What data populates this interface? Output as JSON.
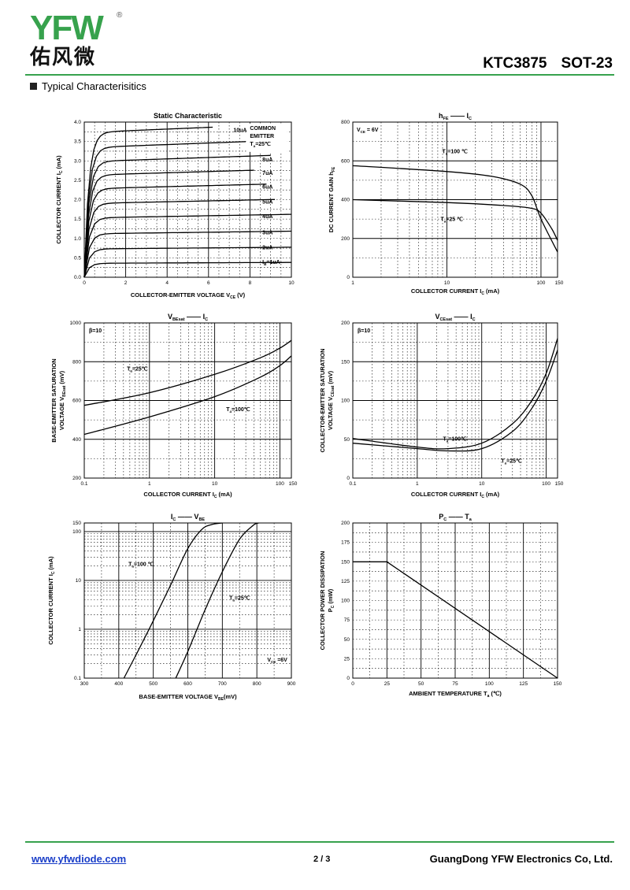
{
  "header": {
    "logo_text": "YFW",
    "logo_cn": "佑风微",
    "part_number": "KTC3875",
    "package": "SOT-23",
    "section_title": "Typical  Characterisitics"
  },
  "colors": {
    "brand_green": "#37a24d",
    "brand_orange": "#f39c1a",
    "link_blue": "#1a3ec8"
  },
  "charts": [
    {
      "type": "line",
      "title": "Static Characteristic",
      "xlabel": "COLLECTOR-EMITTER VOLTAGE",
      "xlabel_sym": "V",
      "xlabel_sub": "CE",
      "xlabel_unit": "(V)",
      "ylabel": "COLLECTOR CURRENT",
      "ylabel_sym": "I",
      "ylabel_sub": "C",
      "ylabel_unit": "(mA)",
      "xticks": [
        "0",
        "2",
        "4",
        "6",
        "8",
        "10"
      ],
      "yticks": [
        "0.0",
        "0.5",
        "1.0",
        "1.5",
        "2.0",
        "2.5",
        "3.0",
        "3.5",
        "4.0"
      ],
      "note": [
        "COMMON",
        "EMITTER",
        "T =25℃"
      ],
      "series_labels": [
        "10uA",
        "9uA",
        "8uA",
        "7uA",
        "6uA",
        "5uA",
        "4uA",
        "3uA",
        "2uA",
        "I =1uA"
      ],
      "series_plateaus": [
        3.73,
        3.34,
        2.98,
        2.63,
        2.28,
        1.9,
        1.53,
        1.12,
        0.73,
        0.36
      ]
    },
    {
      "type": "line",
      "title_sym": "h",
      "title_sub": "FE",
      "title_sym2": "I",
      "title_sub2": "C",
      "xlabel": "COLLECTOR CURRENT",
      "xlabel_sym": "I",
      "xlabel_sub": "C",
      "xlabel_unit": "(mA)",
      "ylabel": "DC CURRENT GAIN",
      "ylabel_sym": "h",
      "ylabel_sub": "FE",
      "xticks": [
        "1",
        "10",
        "100",
        "150"
      ],
      "yticks": [
        "0",
        "200",
        "400",
        "600",
        "800"
      ],
      "note": "V  = 6V",
      "series": [
        {
          "name": "T =100 ℃",
          "x": [
            1,
            10,
            30,
            60,
            80,
            100,
            150
          ],
          "y": [
            575,
            545,
            520,
            480,
            420,
            300,
            130
          ]
        },
        {
          "name": "T =25 ℃",
          "x": [
            1,
            10,
            40,
            80,
            100,
            130,
            150
          ],
          "y": [
            400,
            385,
            370,
            355,
            330,
            250,
            190
          ]
        }
      ]
    },
    {
      "type": "line",
      "title_sym": "V",
      "title_sub": "BEsat",
      "title_sym2": "I",
      "title_sub2": "C",
      "xlabel": "COLLECTOR CURRENT",
      "xlabel_sym": "I",
      "xlabel_sub": "C",
      "xlabel_unit": "(mA)",
      "ylabel": "BASE-EMITTER SATURATION",
      "ylabel2": "VOLTAGE",
      "ylabel_sym": "V",
      "ylabel_sub": "BEsat",
      "ylabel_unit": "(mV)",
      "xticks": [
        "0.1",
        "1",
        "10",
        "100",
        "150"
      ],
      "yticks": [
        "200",
        "400",
        "600",
        "800",
        "1000"
      ],
      "note": "β=10",
      "series": [
        {
          "name": "T =25℃",
          "x": [
            0.1,
            1,
            10,
            50,
            100,
            150
          ],
          "y": [
            575,
            640,
            735,
            820,
            870,
            910
          ]
        },
        {
          "name": "T =100℃",
          "x": [
            0.1,
            1,
            10,
            50,
            100,
            150
          ],
          "y": [
            425,
            515,
            620,
            720,
            780,
            830
          ]
        }
      ]
    },
    {
      "type": "line",
      "title_sym": "V",
      "title_sub": "CEsat",
      "title_sym2": "I",
      "title_sub2": "C",
      "xlabel": "COLLECTOR CURRENT",
      "xlabel_sym": "I",
      "xlabel_sub": "C",
      "xlabel_unit": "(mA)",
      "ylabel": "COLLECTOR-EMITTER SATURATION",
      "ylabel2": "VOLTAGE",
      "ylabel_sym": "V",
      "ylabel_sub": "CEsat",
      "ylabel_unit": "(mV)",
      "xticks": [
        "0.1",
        "1",
        "10",
        "100",
        "150"
      ],
      "yticks": [
        "0",
        "50",
        "100",
        "150",
        "200"
      ],
      "note": "β=10",
      "series": [
        {
          "name": "T =100℃",
          "x": [
            0.1,
            1,
            3,
            10,
            30,
            60,
            100,
            150
          ],
          "y": [
            51,
            40,
            38,
            45,
            70,
            100,
            135,
            180
          ]
        },
        {
          "name": "T =25℃",
          "x": [
            0.1,
            1,
            3,
            10,
            30,
            60,
            100,
            150
          ],
          "y": [
            45,
            38,
            35,
            38,
            60,
            90,
            125,
            165
          ]
        }
      ]
    },
    {
      "type": "line",
      "title_sym": "I",
      "title_sub": "C",
      "title_sym2": "V",
      "title_sub2": "BE",
      "xlabel": "BASE-EMITTER VOLTAGE",
      "xlabel_sym": "V",
      "xlabel_sub": "BE",
      "xlabel_unit": "(mV)",
      "ylabel": "COLLECTOR CURRENT",
      "ylabel_sym": "I",
      "ylabel_sub": "C",
      "ylabel_unit": "(mA)",
      "xticks": [
        "300",
        "400",
        "500",
        "600",
        "700",
        "800",
        "900"
      ],
      "yticks": [
        "0.1",
        "1",
        "10",
        "100",
        "150"
      ],
      "note": "V  =6V",
      "series": [
        {
          "name": "T =100 ℃",
          "x": [
            415,
            450,
            500,
            550,
            600,
            640,
            670,
            700
          ],
          "y": [
            0.1,
            0.3,
            1.5,
            8,
            45,
            110,
            140,
            150
          ]
        },
        {
          "name": "T =25℃",
          "x": [
            565,
            600,
            650,
            700,
            750,
            790,
            805
          ],
          "y": [
            0.1,
            0.35,
            2.5,
            15,
            70,
            135,
            150
          ]
        }
      ]
    },
    {
      "type": "line",
      "title_sym": "P",
      "title_sub": "C",
      "title_sym2": "T",
      "title_sub2": "a",
      "xlabel": "AMBIENT TEMPERATURE",
      "xlabel_sym": "T",
      "xlabel_sub": "a",
      "xlabel_unit": "(℃)",
      "ylabel": "COLLECTOR POWER DISSIPATION",
      "ylabel_sym": "P",
      "ylabel_sub": "C",
      "ylabel_unit": "(mW)",
      "xticks": [
        "0",
        "25",
        "50",
        "75",
        "100",
        "125",
        "150"
      ],
      "yticks": [
        "0",
        "25",
        "50",
        "75",
        "100",
        "125",
        "150",
        "175",
        "200"
      ],
      "series": [
        {
          "name": "",
          "x": [
            0,
            25,
            150
          ],
          "y": [
            150,
            150,
            0
          ]
        }
      ]
    }
  ],
  "footer": {
    "url": "www.yfwdiode.com",
    "page": "2 / 3",
    "company": "GuangDong YFW Electronics Co, Ltd."
  }
}
